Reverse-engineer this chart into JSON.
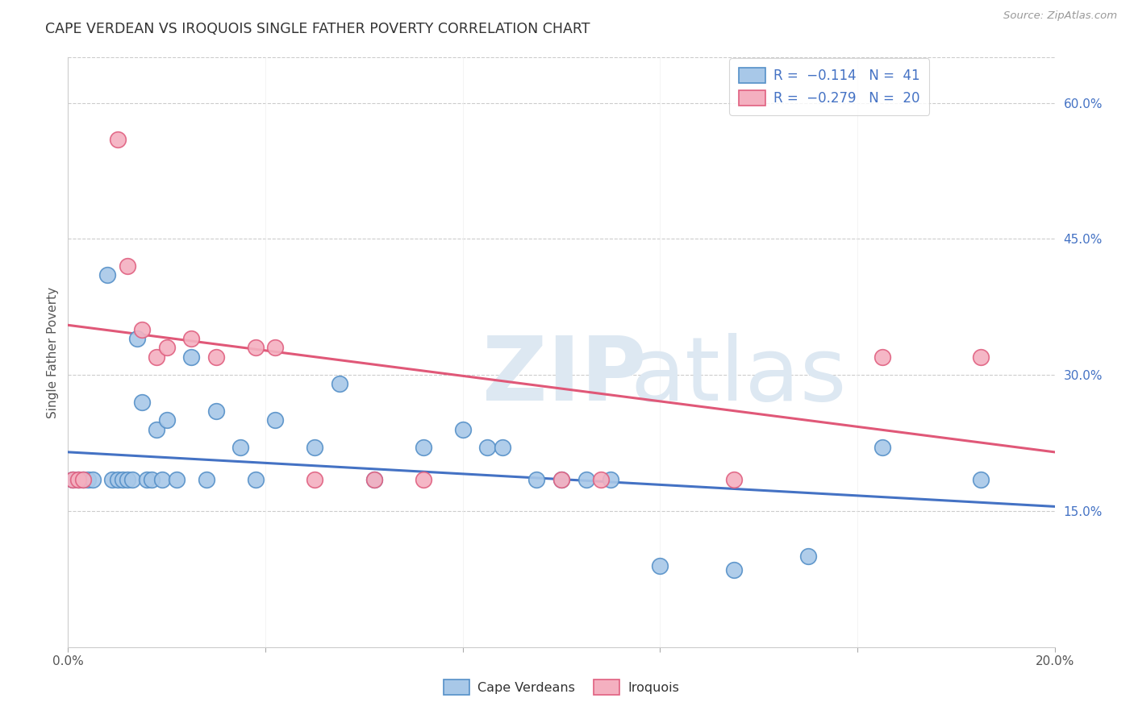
{
  "title": "CAPE VERDEAN VS IROQUOIS SINGLE FATHER POVERTY CORRELATION CHART",
  "source": "Source: ZipAtlas.com",
  "ylabel": "Single Father Poverty",
  "xlim": [
    0.0,
    0.2
  ],
  "ylim": [
    0.0,
    0.65
  ],
  "blue_color": "#a8c8e8",
  "pink_color": "#f4b0c0",
  "blue_edge": "#5590c8",
  "pink_edge": "#e06080",
  "blue_line": "#4472c4",
  "pink_line": "#e05878",
  "cape_verdean_x": [
    0.001,
    0.002,
    0.003,
    0.004,
    0.005,
    0.008,
    0.009,
    0.01,
    0.011,
    0.012,
    0.013,
    0.014,
    0.015,
    0.016,
    0.017,
    0.018,
    0.019,
    0.02,
    0.022,
    0.025,
    0.028,
    0.03,
    0.035,
    0.038,
    0.042,
    0.05,
    0.055,
    0.062,
    0.072,
    0.08,
    0.085,
    0.088,
    0.095,
    0.1,
    0.105,
    0.11,
    0.12,
    0.135,
    0.15,
    0.165,
    0.185
  ],
  "cape_verdean_y": [
    0.185,
    0.185,
    0.185,
    0.185,
    0.185,
    0.41,
    0.185,
    0.185,
    0.185,
    0.185,
    0.185,
    0.34,
    0.27,
    0.185,
    0.185,
    0.24,
    0.185,
    0.25,
    0.185,
    0.32,
    0.185,
    0.26,
    0.22,
    0.185,
    0.25,
    0.22,
    0.29,
    0.185,
    0.22,
    0.24,
    0.22,
    0.22,
    0.185,
    0.185,
    0.185,
    0.185,
    0.09,
    0.085,
    0.1,
    0.22,
    0.185
  ],
  "iroquois_x": [
    0.001,
    0.002,
    0.003,
    0.01,
    0.012,
    0.015,
    0.018,
    0.02,
    0.025,
    0.03,
    0.038,
    0.042,
    0.05,
    0.062,
    0.072,
    0.1,
    0.108,
    0.135,
    0.165,
    0.185
  ],
  "iroquois_y": [
    0.185,
    0.185,
    0.185,
    0.56,
    0.42,
    0.35,
    0.32,
    0.33,
    0.34,
    0.32,
    0.33,
    0.33,
    0.185,
    0.185,
    0.185,
    0.185,
    0.185,
    0.185,
    0.32,
    0.32
  ],
  "blue_line_x0": 0.0,
  "blue_line_y0": 0.215,
  "blue_line_x1": 0.2,
  "blue_line_y1": 0.155,
  "pink_line_x0": 0.0,
  "pink_line_y0": 0.355,
  "pink_line_x1": 0.2,
  "pink_line_y1": 0.215
}
